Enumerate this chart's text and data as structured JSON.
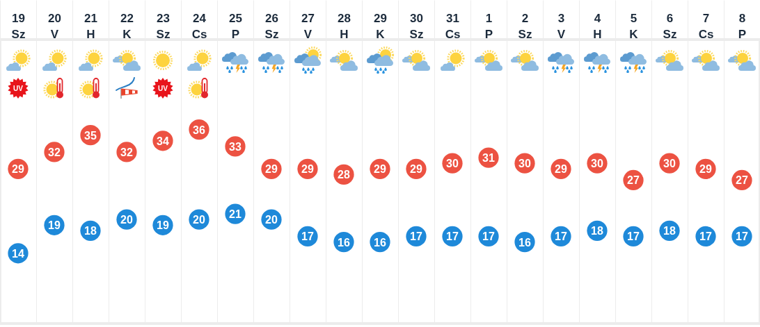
{
  "chart_data": {
    "type": "scatter",
    "categories": [
      "19 Sz",
      "20 V",
      "21 H",
      "22 K",
      "23 Sz",
      "24 Cs",
      "25 P",
      "26 Sz",
      "27 V",
      "28 H",
      "29 K",
      "30 Sz",
      "31 Cs",
      "1 P",
      "2 Sz",
      "3 V",
      "4 H",
      "5 K",
      "6 Sz",
      "7 Cs",
      "8 P"
    ],
    "series": [
      {
        "color": "#ec5242",
        "values": [
          29,
          32,
          35,
          32,
          34,
          36,
          33,
          29,
          29,
          28,
          29,
          29,
          30,
          31,
          30,
          29,
          30,
          27,
          30,
          29,
          27
        ]
      },
      {
        "color": "#1e89d9",
        "values": [
          14,
          19,
          18,
          20,
          19,
          20,
          21,
          20,
          17,
          16,
          16,
          17,
          17,
          17,
          16,
          17,
          18,
          17,
          18,
          17,
          17
        ]
      }
    ],
    "ylim": [
      1.5,
      52
    ],
    "data_labels": true,
    "marker": "circle",
    "grid": "x",
    "tick_labels": "x",
    "annotations": [
      "UV",
      "UV"
    ]
  }
}
